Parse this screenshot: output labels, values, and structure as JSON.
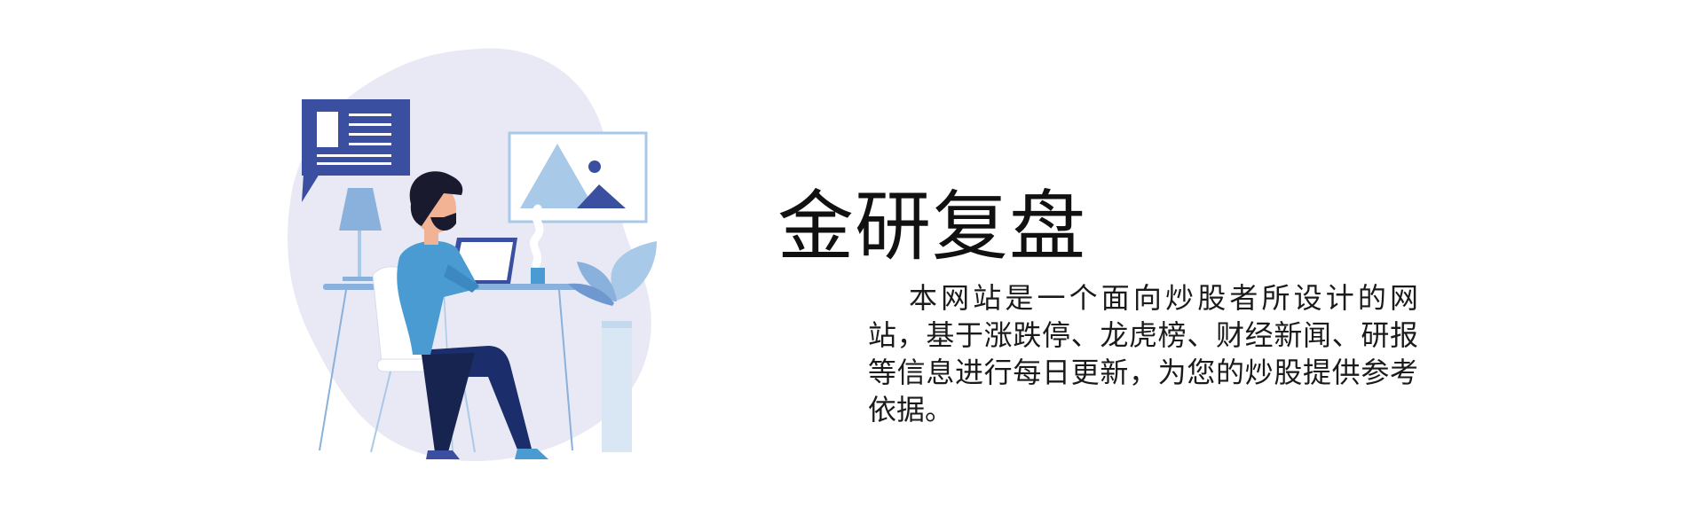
{
  "hero": {
    "title": "金研复盘",
    "description": "本网站是一个面向炒股者所设计的网站，基于涨跌停、龙虎榜、财经新闻、研报等信息进行每日更新，为您的炒股提供参考依据。"
  },
  "illustration": {
    "icon": "person-working-at-laptop-illustration",
    "colors": {
      "blob": "#e8e9f4",
      "navy": "#3b4fa0",
      "shirt": "#4a9bd1",
      "pants": "#1c2d6b",
      "skin": "#f2b394",
      "hair": "#1a1a2e",
      "light_blue": "#a9c9e8",
      "chair": "#ffffff",
      "plant": "#8ab0dc"
    }
  }
}
